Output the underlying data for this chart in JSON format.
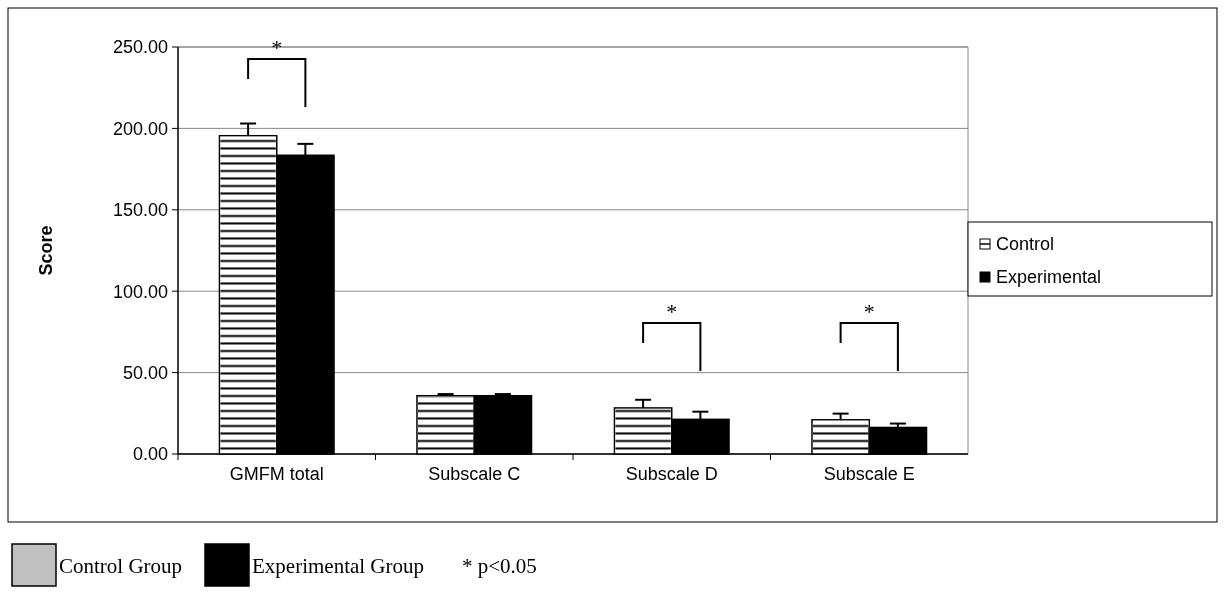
{
  "chart_data": {
    "type": "bar",
    "ylabel": "Score",
    "categories": [
      "GMFM total",
      "Subscale C",
      "Subscale D",
      "Subscale E"
    ],
    "series": [
      {
        "name": "Control",
        "color": "#ffffff",
        "values": [
          195.5,
          35.8,
          28.3,
          21
        ],
        "errors": [
          7.5,
          1,
          5,
          3.8
        ]
      },
      {
        "name": "Experimental",
        "color": "#000000",
        "values": [
          183.5,
          35.8,
          21.3,
          16.3
        ],
        "errors": [
          7,
          1,
          4.7,
          2.4
        ]
      }
    ],
    "ylim": [
      0,
      250
    ],
    "yticks": [
      {
        "value": 0,
        "label": "0.00"
      },
      {
        "value": 50,
        "label": "50.00"
      },
      {
        "value": 100,
        "label": "100.00"
      },
      {
        "value": 150,
        "label": "150.00"
      },
      {
        "value": 200,
        "label": "200.00"
      },
      {
        "value": 250,
        "label": "250.00"
      }
    ],
    "grid": "y",
    "legend": "right",
    "annotations": [
      "*",
      "*",
      "*",
      "Control Group",
      "Experimental Group",
      "* p<0.05"
    ]
  }
}
